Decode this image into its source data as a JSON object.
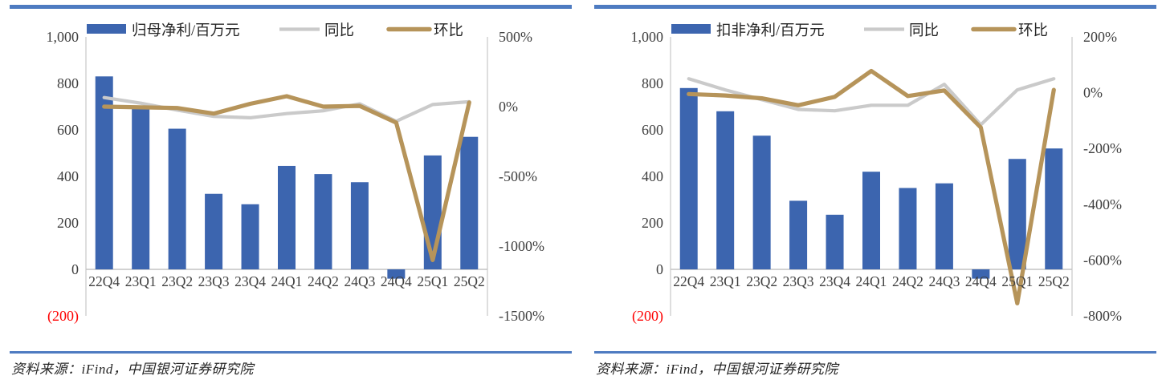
{
  "colors": {
    "bar_blue": "#3c65af",
    "line_gray": "#cacaca",
    "line_gold": "#b6945a",
    "rule_blue": "#4e7bc1",
    "axis_line": "#d6d6d6",
    "zero_line": "#c4c4c4",
    "text": "#3f3f3f",
    "negative_red": "#fe0000"
  },
  "chart_data": [
    {
      "type": "bar",
      "categories": [
        "22Q4",
        "23Q1",
        "23Q2",
        "23Q3",
        "23Q4",
        "24Q1",
        "24Q2",
        "24Q3",
        "24Q4",
        "25Q1",
        "25Q2"
      ],
      "series": [
        {
          "name": "归母净利/百万元",
          "type": "bar",
          "axis": "left",
          "values": [
            830,
            690,
            605,
            325,
            280,
            445,
            410,
            375,
            -40,
            490,
            570
          ]
        },
        {
          "name": "同比",
          "type": "line",
          "axis": "right",
          "values": [
            65,
            25,
            -25,
            -70,
            -80,
            -50,
            -30,
            20,
            -105,
            15,
            35
          ]
        },
        {
          "name": "环比",
          "type": "line",
          "axis": "right",
          "values": [
            0,
            -5,
            -10,
            -50,
            20,
            75,
            0,
            5,
            -115,
            -1100,
            30
          ]
        }
      ],
      "y_left": {
        "min": -200,
        "max": 1000,
        "ticks": [
          {
            "label": "1,000",
            "value": 1000
          },
          {
            "label": "800",
            "value": 800
          },
          {
            "label": "600",
            "value": 600
          },
          {
            "label": "400",
            "value": 400
          },
          {
            "label": "200",
            "value": 200
          },
          {
            "label": "0",
            "value": 0
          },
          {
            "label": "(200)",
            "value": -200,
            "negative": true
          }
        ]
      },
      "y_right": {
        "min": -1500,
        "max": 500,
        "ticks": [
          {
            "label": "500%",
            "value": 500
          },
          {
            "label": "0%",
            "value": 0
          },
          {
            "label": "-500%",
            "value": -500
          },
          {
            "label": "-1000%",
            "value": -1000
          },
          {
            "label": "-1500%",
            "value": -1500
          }
        ]
      },
      "legend_position": "top",
      "grid": false,
      "source": "资料来源：iFind，中国银河证券研究院"
    },
    {
      "type": "bar",
      "categories": [
        "22Q4",
        "23Q1",
        "23Q2",
        "23Q3",
        "23Q4",
        "24Q1",
        "24Q2",
        "24Q3",
        "24Q4",
        "25Q1",
        "25Q2"
      ],
      "series": [
        {
          "name": "扣非净利/百万元",
          "type": "bar",
          "axis": "left",
          "values": [
            780,
            680,
            575,
            295,
            235,
            420,
            350,
            370,
            -40,
            475,
            520
          ]
        },
        {
          "name": "同比",
          "type": "line",
          "axis": "right",
          "values": [
            50,
            10,
            -25,
            -60,
            -65,
            -45,
            -45,
            30,
            -115,
            10,
            50
          ]
        },
        {
          "name": "环比",
          "type": "line",
          "axis": "right",
          "values": [
            -5,
            -10,
            -20,
            -45,
            -15,
            78,
            -12,
            8,
            -125,
            -755,
            10
          ]
        }
      ],
      "y_left": {
        "min": -200,
        "max": 1000,
        "ticks": [
          {
            "label": "1,000",
            "value": 1000
          },
          {
            "label": "800",
            "value": 800
          },
          {
            "label": "600",
            "value": 600
          },
          {
            "label": "400",
            "value": 400
          },
          {
            "label": "200",
            "value": 200
          },
          {
            "label": "0",
            "value": 0
          },
          {
            "label": "(200)",
            "value": -200,
            "negative": true
          }
        ]
      },
      "y_right": {
        "min": -800,
        "max": 200,
        "ticks": [
          {
            "label": "200%",
            "value": 200
          },
          {
            "label": "0%",
            "value": 0
          },
          {
            "label": "-200%",
            "value": -200
          },
          {
            "label": "-400%",
            "value": -400
          },
          {
            "label": "-600%",
            "value": -600
          },
          {
            "label": "-800%",
            "value": -800
          }
        ]
      },
      "legend_position": "top",
      "grid": false,
      "source": "资料来源：iFind，中国银河证券研究院"
    }
  ]
}
